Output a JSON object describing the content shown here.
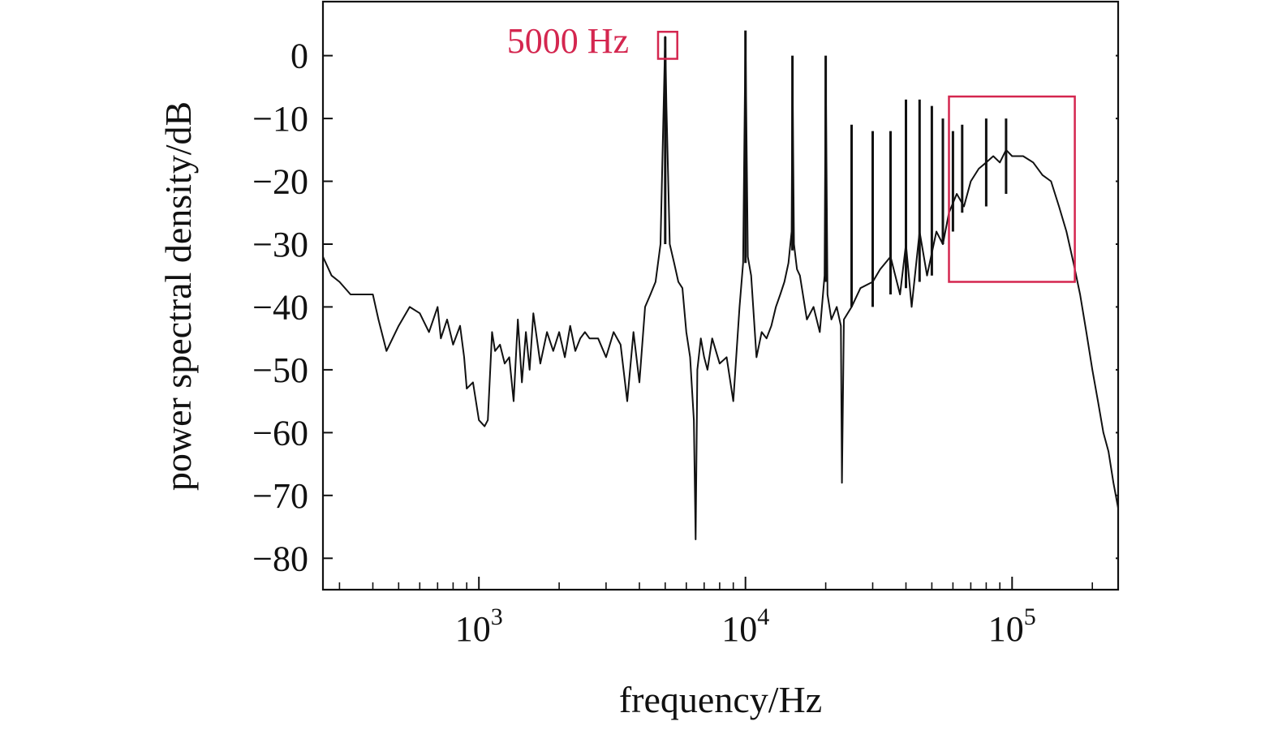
{
  "chart_data": {
    "type": "line",
    "title": "",
    "xlabel": "frequency/Hz",
    "ylabel": "power spectral density/dB",
    "x_scale": "log",
    "xlim": [
      260,
      250000
    ],
    "ylim": [
      -85,
      8.6
    ],
    "grid": false,
    "x_ticks": [
      {
        "value": 1000,
        "base": "10",
        "exp": "3"
      },
      {
        "value": 10000,
        "base": "10",
        "exp": "4"
      },
      {
        "value": 100000,
        "base": "10",
        "exp": "5"
      }
    ],
    "y_ticks": [
      {
        "value": 0,
        "label": "0"
      },
      {
        "value": -10,
        "label": "−10"
      },
      {
        "value": -20,
        "label": "−20"
      },
      {
        "value": -30,
        "label": "−30"
      },
      {
        "value": -40,
        "label": "−40"
      },
      {
        "value": -50,
        "label": "−50"
      },
      {
        "value": -60,
        "label": "−60"
      },
      {
        "value": -70,
        "label": "−70"
      },
      {
        "value": -80,
        "label": "−80"
      }
    ],
    "series_color": "#111111",
    "annotation_color": "#d4264f",
    "series": [
      {
        "x": [
          260,
          280,
          300,
          330,
          360,
          400,
          420,
          450,
          500,
          550,
          600,
          650,
          700,
          720,
          760,
          800,
          850,
          880,
          900,
          950,
          1000,
          1050,
          1080,
          1120,
          1150,
          1200,
          1250,
          1300,
          1350,
          1400,
          1450,
          1500,
          1550,
          1600,
          1700,
          1800,
          1900,
          2000,
          2100,
          2200,
          2300,
          2400,
          2500,
          2600,
          2800,
          3000,
          3200,
          3400,
          3600,
          3800,
          4000,
          4200,
          4400,
          4600,
          4800,
          4950,
          5000,
          5050,
          5200,
          5400,
          5600,
          5800,
          6000,
          6200,
          6400,
          6500,
          6600,
          6800,
          7000,
          7200,
          7500,
          8000,
          8500,
          9000,
          9500,
          9800,
          10000,
          10200,
          10500,
          11000,
          11500,
          12000,
          12500,
          13000,
          13500,
          14000,
          14500,
          14900,
          15000,
          15200,
          15600,
          16000,
          17000,
          18000,
          19000,
          19800,
          20000,
          20300,
          21000,
          22000,
          22800,
          23000,
          23400,
          25000,
          27000,
          30000,
          32000,
          35000,
          38000,
          40000,
          42000,
          45000,
          48000,
          52000,
          55000,
          58000,
          62000,
          66000,
          70000,
          75000,
          80000,
          85000,
          90000,
          95000,
          100000,
          110000,
          120000,
          130000,
          140000,
          150000,
          160000,
          170000,
          180000,
          190000,
          200000,
          210000,
          220000,
          230000,
          240000,
          250000
        ],
        "y": [
          -32,
          -35,
          -36,
          -38,
          -38,
          -38,
          -42,
          -47,
          -43,
          -40,
          -41,
          -44,
          -40,
          -45,
          -42,
          -46,
          -43,
          -48,
          -53,
          -52,
          -58,
          -59,
          -58,
          -44,
          -47,
          -46,
          -49,
          -48,
          -55,
          -42,
          -52,
          -44,
          -50,
          -41,
          -49,
          -44,
          -47,
          -44,
          -48,
          -43,
          -47,
          -45,
          -44,
          -45,
          -45,
          -48,
          -44,
          -46,
          -55,
          -44,
          -52,
          -40,
          -38,
          -36,
          -30,
          -5,
          3,
          -8,
          -30,
          -33,
          -36,
          -37,
          -44,
          -48,
          -58,
          -77,
          -50,
          -45,
          -48,
          -50,
          -45,
          -49,
          -48,
          -55,
          -40,
          -33,
          3,
          -32,
          -35,
          -48,
          -44,
          -45,
          -43,
          -40,
          -38,
          -36,
          -33,
          -28,
          -2,
          -30,
          -34,
          -35,
          -42,
          -40,
          -44,
          -35,
          -1,
          -38,
          -42,
          -40,
          -43,
          -68,
          -42,
          -40,
          -37,
          -36,
          -34,
          -32,
          -38,
          -30,
          -40,
          -28,
          -35,
          -28,
          -30,
          -25,
          -22,
          -24,
          -20,
          -18,
          -17,
          -16,
          -17,
          -15,
          -16,
          -16,
          -17,
          -19,
          -20,
          -24,
          -28,
          -33,
          -38,
          -44,
          -50,
          -55,
          -60,
          -63,
          -68,
          -72
        ]
      }
    ],
    "peaks": [
      {
        "x": 5000,
        "y": 3,
        "floor": -30
      },
      {
        "x": 10000,
        "y": 4,
        "floor": -33
      },
      {
        "x": 15000,
        "y": 0,
        "floor": -31
      },
      {
        "x": 20000,
        "y": 0,
        "floor": -36
      },
      {
        "x": 25000,
        "y": -11,
        "floor": -40
      },
      {
        "x": 30000,
        "y": -12,
        "floor": -40
      },
      {
        "x": 35000,
        "y": -12,
        "floor": -38
      },
      {
        "x": 40000,
        "y": -7,
        "floor": -37
      },
      {
        "x": 45000,
        "y": -7,
        "floor": -36
      },
      {
        "x": 50000,
        "y": -8,
        "floor": -35
      },
      {
        "x": 55000,
        "y": -10,
        "floor": -30
      },
      {
        "x": 60000,
        "y": -12,
        "floor": -28
      },
      {
        "x": 65000,
        "y": -11,
        "floor": -25
      },
      {
        "x": 80000,
        "y": -10,
        "floor": -24
      },
      {
        "x": 95000,
        "y": -10,
        "floor": -22
      }
    ],
    "annotations": [
      {
        "label": "5000 Hz",
        "box": {
          "x_min": 4700,
          "x_max": 5550,
          "y_min": -0.5,
          "y_max": 3.8
        }
      },
      {
        "label": "",
        "box": {
          "x_min": 58000,
          "x_max": 172000,
          "y_min": -36,
          "y_max": -6.5
        }
      }
    ]
  }
}
